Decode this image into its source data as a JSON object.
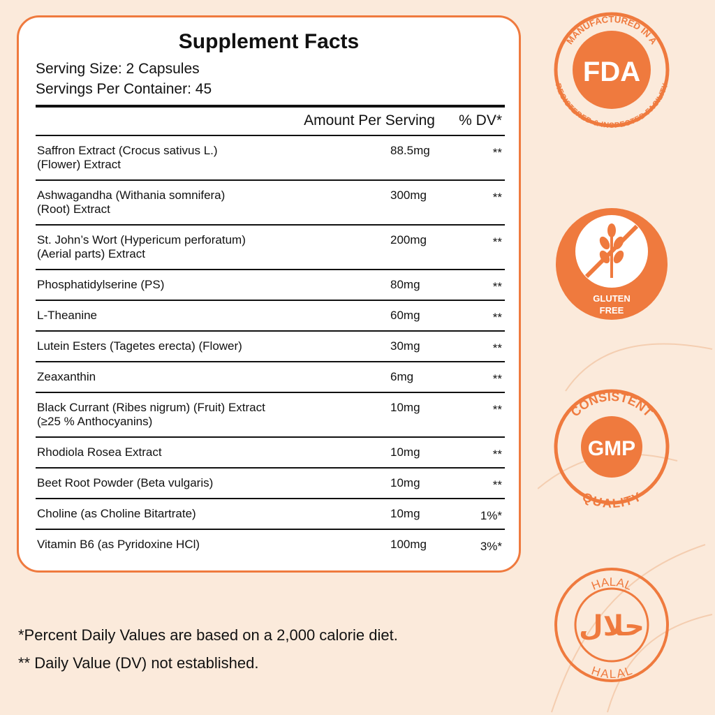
{
  "facts": {
    "title": "Supplement Facts",
    "serving_size": "Serving Size: 2 Capsules",
    "servings_per_container": "Servings Per Container: 45",
    "header": {
      "amount": "Amount Per Serving",
      "dv": "% DV*"
    },
    "rows": [
      {
        "name": [
          "Saffron Extract (Crocus sativus L.)",
          "(Flower) Extract"
        ],
        "amount": "88.5mg",
        "dv": "**"
      },
      {
        "name": [
          "Ashwagandha (Withania somnifera)",
          "(Root) Extract"
        ],
        "amount": "300mg",
        "dv": "**"
      },
      {
        "name": [
          "St. John’s Wort (Hypericum perforatum)",
          "(Aerial parts) Extract"
        ],
        "amount": "200mg",
        "dv": "**"
      },
      {
        "name": [
          "Phosphatidylserine (PS)"
        ],
        "amount": "80mg",
        "dv": "**"
      },
      {
        "name": [
          "L-Theanine"
        ],
        "amount": "60mg",
        "dv": "**"
      },
      {
        "name": [
          "Lutein Esters (Tagetes erecta) (Flower)"
        ],
        "amount": "30mg",
        "dv": "**"
      },
      {
        "name": [
          "Zeaxanthin"
        ],
        "amount": "6mg",
        "dv": "**"
      },
      {
        "name": [
          "Black Currant (Ribes nigrum) (Fruit) Extract",
          "(≥25 % Anthocyanins)"
        ],
        "amount": "10mg",
        "dv": "**"
      },
      {
        "name": [
          "Rhodiola Rosea Extract"
        ],
        "amount": "10mg",
        "dv": "**"
      },
      {
        "name": [
          "Beet Root Powder (Beta vulgaris)"
        ],
        "amount": "10mg",
        "dv": "**"
      },
      {
        "name": [
          "Choline (as Choline Bitartrate)"
        ],
        "amount": "10mg",
        "dv": "1%*"
      },
      {
        "name": [
          "Vitamin B6 (as Pyridoxine HCl)"
        ],
        "amount": "100mg",
        "dv": "3%*"
      }
    ]
  },
  "footnotes": [
    "*Percent Daily Values are based on a 2,000 calorie diet.",
    "** Daily Value (DV) not established."
  ],
  "badges": {
    "fda": {
      "top": "MANUFACTURED IN A",
      "center": "FDA",
      "bottom": "REGISTERED & INSPECTED FACILITY"
    },
    "gluten": {
      "label": [
        "GLUTEN",
        "FREE"
      ]
    },
    "gmp": {
      "top": "CONSISTENT",
      "center": "GMP",
      "bottom": "QUALITY"
    },
    "halal": {
      "top": "HALAL",
      "center": "حلال",
      "bottom": "HALAL"
    }
  }
}
